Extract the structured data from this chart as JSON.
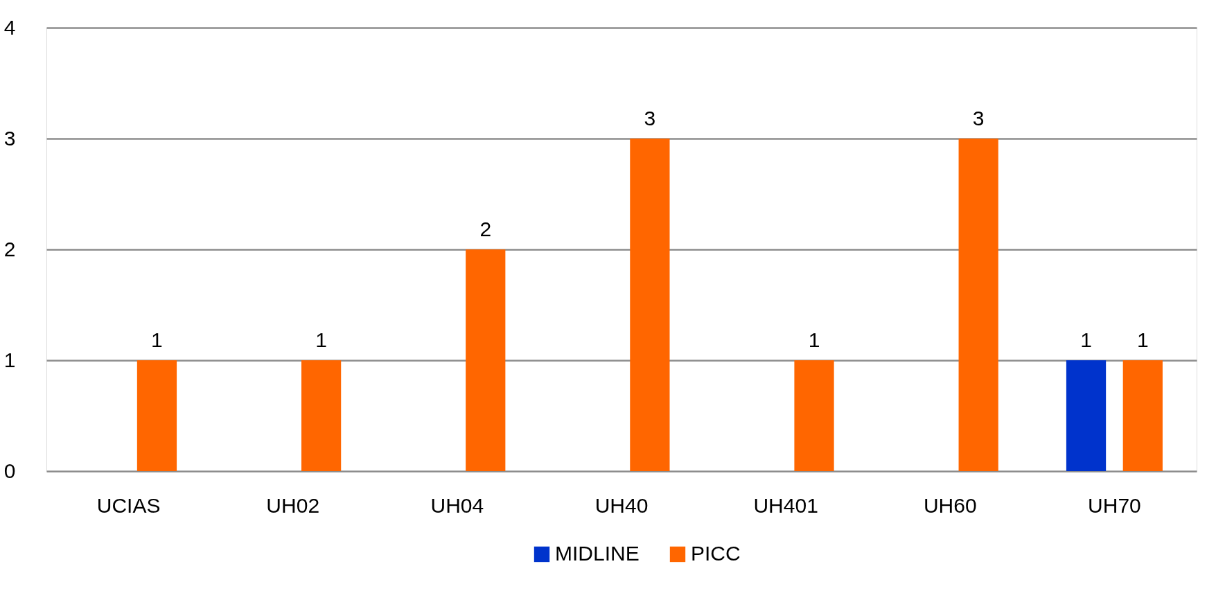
{
  "chart_data": {
    "type": "bar",
    "categories": [
      "UCIAS",
      "UH02",
      "UH04",
      "UH40",
      "UH401",
      "UH60",
      "UH70"
    ],
    "series": [
      {
        "name": "MIDLINE",
        "color": "#0033cc",
        "values": [
          null,
          null,
          null,
          null,
          null,
          null,
          1
        ]
      },
      {
        "name": "PICC",
        "color": "#ff6600",
        "values": [
          1,
          1,
          2,
          3,
          1,
          3,
          1
        ]
      }
    ],
    "ylim": [
      0,
      4
    ],
    "yticks": [
      0,
      1,
      2,
      3,
      4
    ],
    "grid": "y",
    "legend": "bottom",
    "data_labels": true
  }
}
